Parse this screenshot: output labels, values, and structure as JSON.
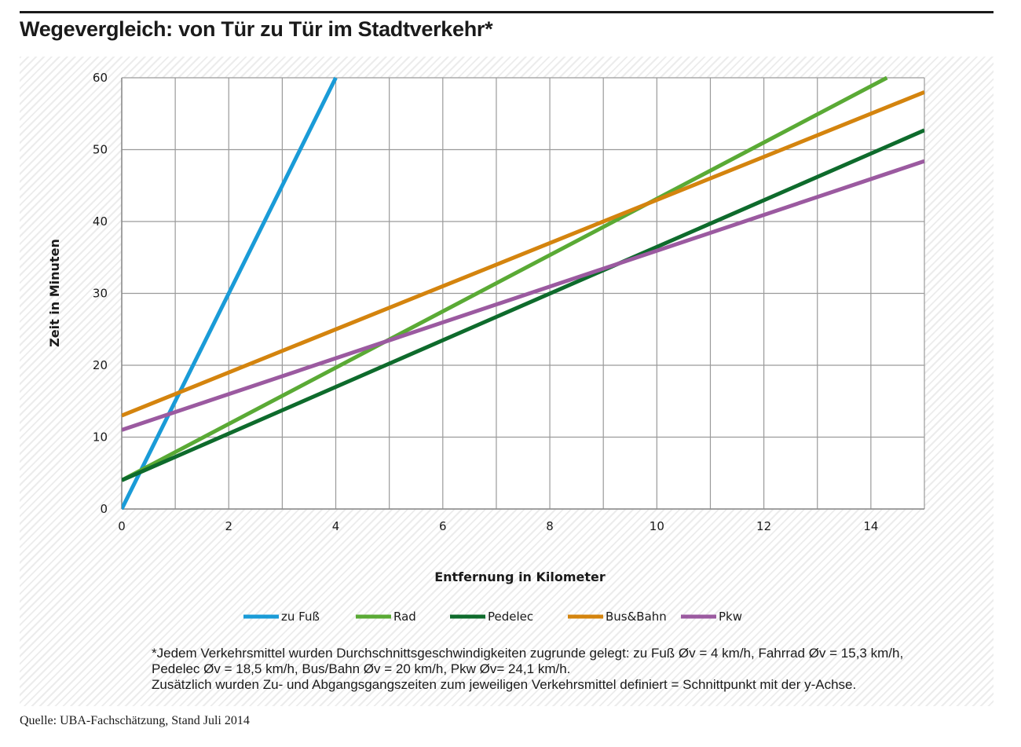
{
  "title": "Wegevergleich: von Tür zu Tür im Stadtverkehr*",
  "chart_data": {
    "type": "line",
    "xlabel": "Entfernung in Kilometer",
    "ylabel": "Zeit in Minuten",
    "xlim": [
      0,
      15
    ],
    "ylim": [
      0,
      60
    ],
    "xticks": [
      0,
      2,
      4,
      6,
      8,
      10,
      12,
      14
    ],
    "yticks": [
      0,
      10,
      20,
      30,
      40,
      50,
      60
    ],
    "x_gridlines": [
      0,
      1,
      2,
      3,
      4,
      5,
      6,
      7,
      8,
      9,
      10,
      11,
      12,
      13,
      14,
      15
    ],
    "grid": true,
    "legend_position": "bottom",
    "series": [
      {
        "name": "zu Fuß",
        "color": "#1a9bd7",
        "x": [
          0,
          4
        ],
        "y": [
          0,
          60
        ]
      },
      {
        "name": "Rad",
        "color": "#5aaa35",
        "x": [
          0,
          14.3
        ],
        "y": [
          4,
          60
        ]
      },
      {
        "name": "Pedelec",
        "color": "#0e6b2c",
        "x": [
          0,
          15
        ],
        "y": [
          4,
          52.7
        ]
      },
      {
        "name": "Bus&Bahn",
        "color": "#d4840e",
        "x": [
          0,
          15
        ],
        "y": [
          13,
          58
        ]
      },
      {
        "name": "Pkw",
        "color": "#9b5aa0",
        "x": [
          0,
          15
        ],
        "y": [
          11,
          48.4
        ]
      }
    ]
  },
  "footnote": {
    "line1": "*Jedem Verkehrsmittel wurden Durchschnittsgeschwindigkeiten zugrunde gelegt: zu Fuß Øv  = 4 km/h, Fahrrad Øv  = 15,3 km/h,",
    "line2": "Pedelec Øv =  18,5 km/h, Bus/Bahn Øv  = 20 km/h, Pkw Øv= 24,1 km/h.",
    "line3": "Zusätzlich wurden Zu- und Abgangsgangszeiten zum jeweiligen Verkehrsmittel definiert = Schnittpunkt mit der y-Achse."
  },
  "source": "Quelle: UBA-Fachschätzung, Stand Juli 2014"
}
